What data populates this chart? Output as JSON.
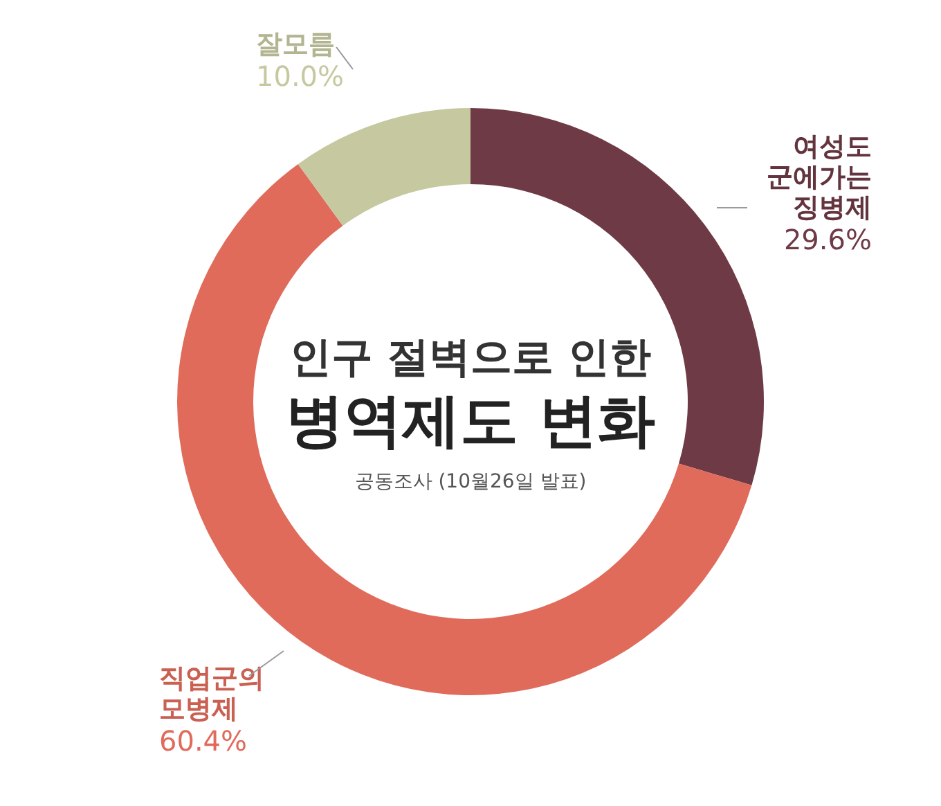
{
  "chart_data": {
    "type": "donut",
    "subtitle": "인구 절벽으로 인한",
    "title": "병역제도 변화",
    "annotations": [
      "공동조사 (10월26일 발표)"
    ],
    "categories": [
      "여성도 군에가는 징병제",
      "직업군의 모병제",
      "잘모름"
    ],
    "values": [
      29.6,
      60.4,
      10.0
    ],
    "colors": [
      "#6e3a45",
      "#e06b5b",
      "#c6c9a0"
    ],
    "value_labels": [
      "29.6%",
      "60.4%",
      "10.0%"
    ]
  }
}
